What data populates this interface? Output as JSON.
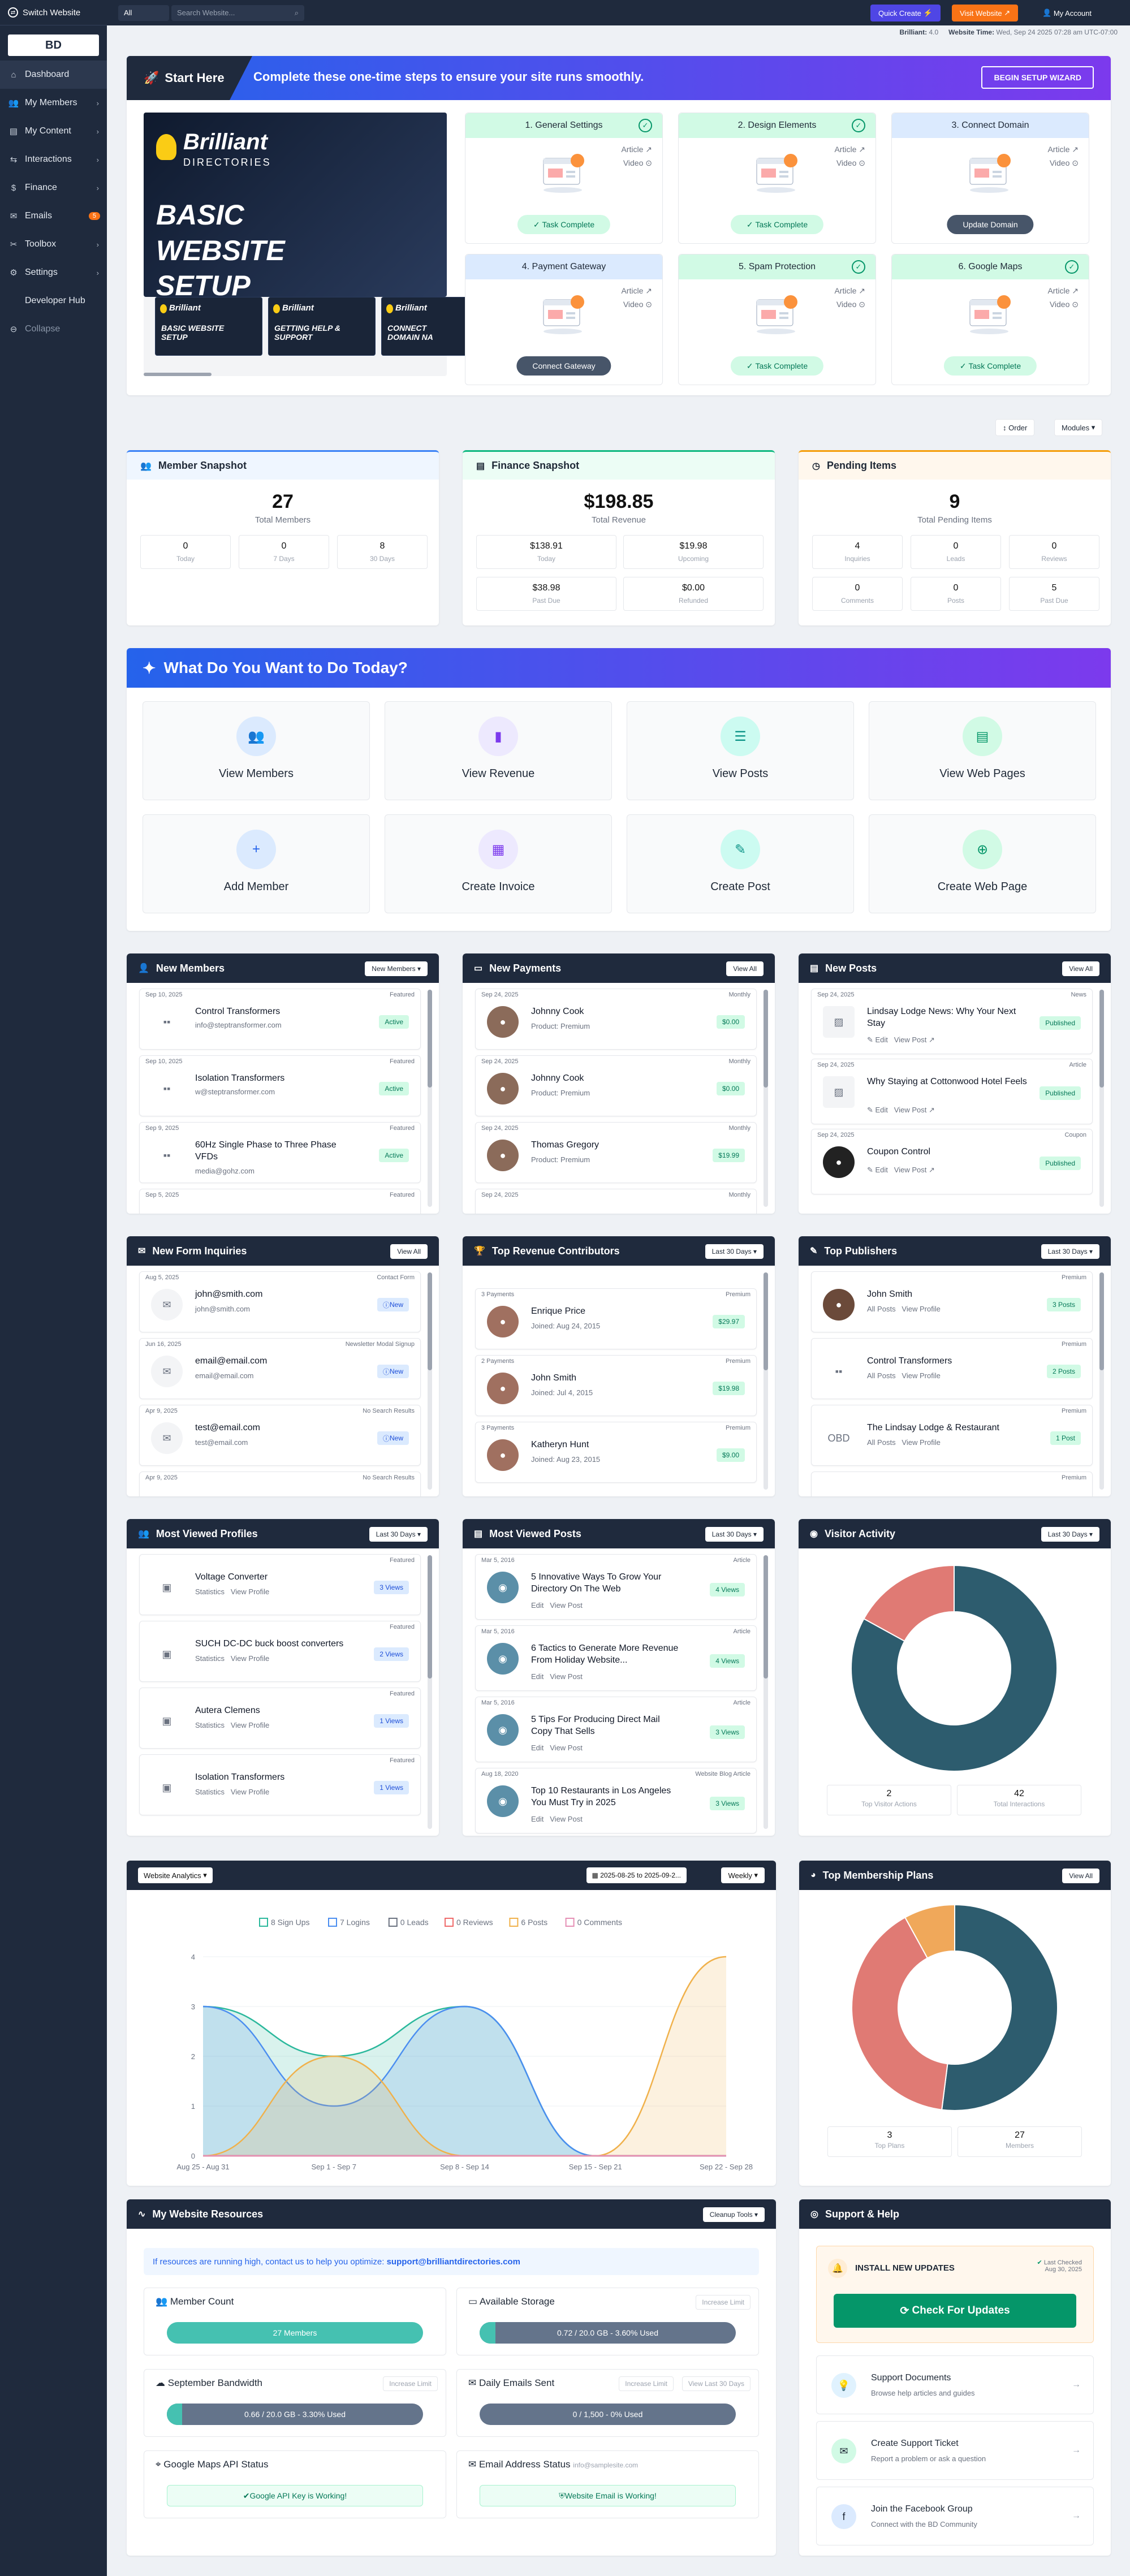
{
  "sidebar": {
    "switch": "Switch Website",
    "logo": "BD",
    "items": [
      {
        "label": "Dashboard",
        "icon": "home-icon",
        "chev": false
      },
      {
        "label": "My Members",
        "icon": "users-icon",
        "chev": true
      },
      {
        "label": "My Content",
        "icon": "content-icon",
        "chev": true
      },
      {
        "label": "Interactions",
        "icon": "interactions-icon",
        "chev": true
      },
      {
        "label": "Finance",
        "icon": "finance-icon",
        "chev": true
      },
      {
        "label": "Emails",
        "icon": "mail-icon",
        "badge": "5"
      },
      {
        "label": "Toolbox",
        "icon": "toolbox-icon",
        "chev": true
      },
      {
        "label": "Settings",
        "icon": "gear-icon",
        "chev": true
      },
      {
        "label": "Developer Hub",
        "icon": "code-icon",
        "chev": false
      },
      {
        "label": "Collapse",
        "icon": "collapse-icon",
        "chev": false
      }
    ]
  },
  "topbar": {
    "select": "All",
    "search_placeholder": "Search Website...",
    "quick_create": "Quick Create",
    "visit": "Visit Website",
    "account": "My Account"
  },
  "subbar": {
    "brand_label": "Brilliant:",
    "brand_version": "4.0",
    "time_label": "Website Time:",
    "time_value": "Wed, Sep 24 2025 07:28 am UTC-07:00"
  },
  "setup": {
    "title": "Start Here",
    "subtitle": "Complete these one-time steps to ensure your site runs smoothly.",
    "wizard": "BEGIN SETUP WIZARD",
    "video_brand": "Brilliant",
    "video_brand2": "DIRECTORIES",
    "video_title": "BASIC WEBSITE SETUP",
    "thumbs": [
      "BASIC WEBSITE SETUP",
      "GETTING HELP & SUPPORT",
      "CONNECT DOMAIN NA"
    ],
    "article": "Article",
    "video": "Video",
    "tiles": [
      {
        "title": "1. General Settings",
        "action": "Task Complete",
        "done": true
      },
      {
        "title": "2. Design Elements",
        "action": "Task Complete",
        "done": true
      },
      {
        "title": "3. Connect Domain",
        "action": "Update Domain",
        "done": false
      },
      {
        "title": "4. Payment Gateway",
        "action": "Connect Gateway",
        "done": false
      },
      {
        "title": "5. Spam Protection",
        "action": "Task Complete",
        "done": true
      },
      {
        "title": "6. Google Maps",
        "action": "Task Complete",
        "done": true
      }
    ]
  },
  "toolbar": {
    "order": "Order",
    "modules": "Modules"
  },
  "snapshots": [
    {
      "title": "Member Snapshot",
      "big": "27",
      "big_label": "Total Members",
      "boxes": [
        {
          "n": "0",
          "l": "Today"
        },
        {
          "n": "0",
          "l": "7 Days"
        },
        {
          "n": "8",
          "l": "30 Days"
        }
      ]
    },
    {
      "title": "Finance Snapshot",
      "big": "$198.85",
      "big_label": "Total Revenue",
      "boxes": [
        {
          "n": "$138.91",
          "l": "Today"
        },
        {
          "n": "$19.98",
          "l": "Upcoming"
        },
        {
          "n": "$38.98",
          "l": "Past Due"
        },
        {
          "n": "$0.00",
          "l": "Refunded"
        }
      ]
    },
    {
      "title": "Pending Items",
      "big": "9",
      "big_label": "Total Pending Items",
      "boxes": [
        {
          "n": "4",
          "l": "Inquiries"
        },
        {
          "n": "0",
          "l": "Leads"
        },
        {
          "n": "0",
          "l": "Reviews"
        },
        {
          "n": "0",
          "l": "Comments"
        },
        {
          "n": "0",
          "l": "Posts"
        },
        {
          "n": "5",
          "l": "Past Due"
        }
      ]
    }
  ],
  "wtd": {
    "title": "What Do You Want to Do Today?",
    "items": [
      {
        "label": "View Members",
        "icon": "users-icon",
        "bg": "#dbeafe",
        "fg": "#2563eb",
        "glyph": "👥"
      },
      {
        "label": "View Revenue",
        "icon": "chart-icon",
        "bg": "#ede9fe",
        "fg": "#7c3aed",
        "glyph": "▮"
      },
      {
        "label": "View Posts",
        "icon": "list-icon",
        "bg": "#ccfbf1",
        "fg": "#0d9488",
        "glyph": "☰"
      },
      {
        "label": "View Web Pages",
        "icon": "file-icon",
        "bg": "#d1fae5",
        "fg": "#059669",
        "glyph": "▤"
      },
      {
        "label": "Add Member",
        "icon": "add-user-icon",
        "bg": "#dbeafe",
        "fg": "#2563eb",
        "glyph": "+"
      },
      {
        "label": "Create Invoice",
        "icon": "invoice-icon",
        "bg": "#ede9fe",
        "fg": "#7c3aed",
        "glyph": "▦"
      },
      {
        "label": "Create Post",
        "icon": "edit-icon",
        "bg": "#ccfbf1",
        "fg": "#0d9488",
        "glyph": "✎"
      },
      {
        "label": "Create Web Page",
        "icon": "plus-circle-icon",
        "bg": "#d1fae5",
        "fg": "#059669",
        "glyph": "⊕"
      }
    ]
  },
  "new_members": {
    "title": "New Members",
    "button": "New Members",
    "items": [
      {
        "date": "Sep 10, 2025",
        "tag": "Featured",
        "name": "Control Transformers",
        "sub": "info@steptransformer.com",
        "status": "Active"
      },
      {
        "date": "Sep 10, 2025",
        "tag": "Featured",
        "name": "Isolation Transformers",
        "sub": "w@steptransformer.com",
        "status": "Active"
      },
      {
        "date": "Sep 9, 2025",
        "tag": "Featured",
        "name": "60Hz Single Phase to Three Phase VFDs",
        "sub": "media@gohz.com",
        "status": "Active"
      },
      {
        "date": "Sep 5, 2025",
        "tag": "Featured",
        "name": "",
        "sub": "",
        "status": ""
      }
    ]
  },
  "new_payments": {
    "title": "New Payments",
    "button": "View All",
    "items": [
      {
        "date": "Sep 24, 2025",
        "tag": "Monthly",
        "name": "Johnny Cook",
        "sub": "Product: Premium",
        "amount": "$0.00"
      },
      {
        "date": "Sep 24, 2025",
        "tag": "Monthly",
        "name": "Johnny Cook",
        "sub": "Product: Premium",
        "amount": "$0.00"
      },
      {
        "date": "Sep 24, 2025",
        "tag": "Monthly",
        "name": "Thomas Gregory",
        "sub": "Product: Premium",
        "amount": "$19.99"
      },
      {
        "date": "Sep 24, 2025",
        "tag": "Monthly",
        "name": "",
        "sub": "",
        "amount": ""
      }
    ]
  },
  "new_posts": {
    "title": "New Posts",
    "button": "View All",
    "edit": "Edit",
    "view": "View Post",
    "items": [
      {
        "date": "Sep 24, 2025",
        "tag": "News",
        "name": "Lindsay Lodge News: Why Your Next Stay",
        "status": "Published"
      },
      {
        "date": "Sep 24, 2025",
        "tag": "Article",
        "name": "Why Staying at Cottonwood Hotel Feels",
        "status": "Published"
      },
      {
        "date": "Sep 24, 2025",
        "tag": "Coupon",
        "name": "Coupon Control",
        "status": "Published"
      }
    ]
  },
  "form_inquiries": {
    "title": "New Form Inquiries",
    "button": "View All",
    "new": "New",
    "items": [
      {
        "date": "Aug 5, 2025",
        "tag": "Contact Form",
        "name": "john@smith.com",
        "sub": "john@smith.com"
      },
      {
        "date": "Jun 16, 2025",
        "tag": "Newsletter Modal Signup",
        "name": "email@email.com",
        "sub": "email@email.com"
      },
      {
        "date": "Apr 9, 2025",
        "tag": "No Search Results",
        "name": "test@email.com",
        "sub": "test@email.com"
      },
      {
        "date": "Apr 9, 2025",
        "tag": "No Search Results",
        "name": "",
        "sub": ""
      }
    ]
  },
  "revenue_contrib": {
    "title": "Top Revenue Contributors",
    "button": "Last 30 Days",
    "items": [
      {
        "date": "3 Payments",
        "tag": "Premium",
        "name": "Enrique Price",
        "sub": "Joined: Aug 24, 2015",
        "amount": "$29.97"
      },
      {
        "date": "2 Payments",
        "tag": "Premium",
        "name": "John Smith",
        "sub": "Joined: Jul 4, 2015",
        "amount": "$19.98"
      },
      {
        "date": "3 Payments",
        "tag": "Premium",
        "name": "Katheryn Hunt",
        "sub": "Joined: Aug 23, 2015",
        "amount": "$9.00"
      }
    ]
  },
  "publishers": {
    "title": "Top Publishers",
    "button": "Last 30 Days",
    "all": "All Posts",
    "view": "View Profile",
    "items": [
      {
        "tag": "Premium",
        "name": "John Smith",
        "count": "3 Posts"
      },
      {
        "tag": "Premium",
        "name": "Control Transformers",
        "count": "2 Posts"
      },
      {
        "tag": "Premium",
        "name": "The Lindsay Lodge & Restaurant",
        "count": "1 Post"
      },
      {
        "tag": "Premium",
        "name": "",
        "count": ""
      }
    ]
  },
  "viewed_profiles": {
    "title": "Most Viewed Profiles",
    "button": "Last 30 Days",
    "stats": "Statistics",
    "view": "View Profile",
    "items": [
      {
        "tag": "Featured",
        "name": "Voltage Converter",
        "count": "3 Views"
      },
      {
        "tag": "Featured",
        "name": "SUCH DC-DC buck boost converters",
        "count": "2 Views"
      },
      {
        "tag": "Featured",
        "name": "Autera Clemens",
        "count": "1 Views"
      },
      {
        "tag": "Featured",
        "name": "Isolation Transformers",
        "count": "1 Views"
      }
    ]
  },
  "viewed_posts": {
    "title": "Most Viewed Posts",
    "button": "Last 30 Days",
    "edit": "Edit",
    "view": "View Post",
    "items": [
      {
        "date": "Mar 5, 2016",
        "tag": "Article",
        "name": "5 Innovative Ways To Grow Your Directory On The Web",
        "count": "4 Views"
      },
      {
        "date": "Mar 5, 2016",
        "tag": "Article",
        "name": "6 Tactics to Generate More Revenue From Holiday Website...",
        "count": "4 Views"
      },
      {
        "date": "Mar 5, 2016",
        "tag": "Article",
        "name": "5 Tips For Producing Direct Mail Copy That Sells",
        "count": "3 Views"
      },
      {
        "date": "Aug 18, 2020",
        "tag": "Website Blog Article",
        "name": "Top 10 Restaurants in Los Angeles You Must Try in 2025",
        "count": "3 Views"
      }
    ]
  },
  "visitor_activity": {
    "title": "Visitor Activity",
    "button": "Last 30 Days",
    "stats": [
      {
        "n": "2",
        "l": "Top Visitor Actions"
      },
      {
        "n": "42",
        "l": "Total Interactions"
      }
    ]
  },
  "analytics": {
    "select": "Website Analytics",
    "date_range": "2025-08-25 to 2025-09-2...",
    "interval": "Weekly"
  },
  "chart_data": {
    "type": "area",
    "x": [
      "Aug 25 - Aug 31",
      "Sep 1 - Sep 7",
      "Sep 8 - Sep 14",
      "Sep 15 - Sep 21",
      "Sep 22 - Sep 28"
    ],
    "ylim": [
      0,
      4
    ],
    "yticks": [
      "0",
      "1",
      "2",
      "3",
      "4"
    ],
    "series": [
      {
        "name": "8 Sign Ups",
        "color": "#2bb89c",
        "values": [
          3,
          2,
          3,
          0,
          0
        ]
      },
      {
        "name": "7 Logins",
        "color": "#4b8ef0",
        "values": [
          3,
          1,
          3,
          0,
          0
        ]
      },
      {
        "name": "0 Leads",
        "color": "#6b7280",
        "values": [
          0,
          0,
          0,
          0,
          0
        ]
      },
      {
        "name": "0 Reviews",
        "color": "#ef6b6b",
        "values": [
          0,
          0,
          0,
          0,
          0
        ]
      },
      {
        "name": "6 Posts",
        "color": "#f0b14b",
        "values": [
          0,
          2,
          0,
          0,
          4
        ]
      },
      {
        "name": "0 Comments",
        "color": "#e58fb5",
        "values": [
          0,
          0,
          0,
          0,
          0
        ]
      }
    ]
  },
  "visitor_donut": {
    "slices": [
      {
        "value": 83,
        "color": "#2d5c6e"
      },
      {
        "value": 17,
        "color": "#e07a74"
      }
    ]
  },
  "membership": {
    "title": "Top Membership Plans",
    "button": "View All",
    "stats": [
      {
        "n": "3",
        "l": "Top Plans"
      },
      {
        "n": "27",
        "l": "Members"
      }
    ],
    "slices": [
      {
        "value": 52,
        "color": "#2d5c6e"
      },
      {
        "value": 40,
        "color": "#e07a74"
      },
      {
        "value": 8,
        "color": "#f0a85a"
      }
    ]
  },
  "resources": {
    "title": "My Website Resources",
    "button": "Cleanup Tools",
    "notice": "If resources are running high, contact us to help you optimize:",
    "notice_email": "support@brilliantdirectories.com",
    "member_count": "Member Count",
    "member_bar": "27 Members",
    "storage": "Available Storage",
    "increase": "Increase Limit",
    "storage_bar": "0.72 / 20.0 GB - 3.60% Used",
    "storage_pct": 3.6,
    "bandwidth": "September Bandwidth",
    "bandwidth_bar": "0.66 / 20.0 GB - 3.30% Used",
    "bandwidth_pct": 3.3,
    "emails": "Daily Emails Sent",
    "view30": "View Last 30 Days",
    "emails_bar": "0 / 1,500 - 0% Used",
    "maps": "Google Maps API Status",
    "maps_ok": "Google API Key is Working!",
    "email_status": "Email Address Status",
    "email_addr": "info@samplesite.com",
    "email_ok": "Website Email is Working!"
  },
  "support": {
    "title": "Support & Help",
    "install": "INSTALL NEW UPDATES",
    "last_checked": "Last Checked",
    "last_date": "Aug 30, 2025",
    "check": "Check For Updates",
    "items": [
      {
        "t": "Support Documents",
        "s": "Browse help articles and guides"
      },
      {
        "t": "Create Support Ticket",
        "s": "Report a problem or ask a question"
      },
      {
        "t": "Join the Facebook Group",
        "s": "Connect with the BD Community"
      }
    ]
  }
}
